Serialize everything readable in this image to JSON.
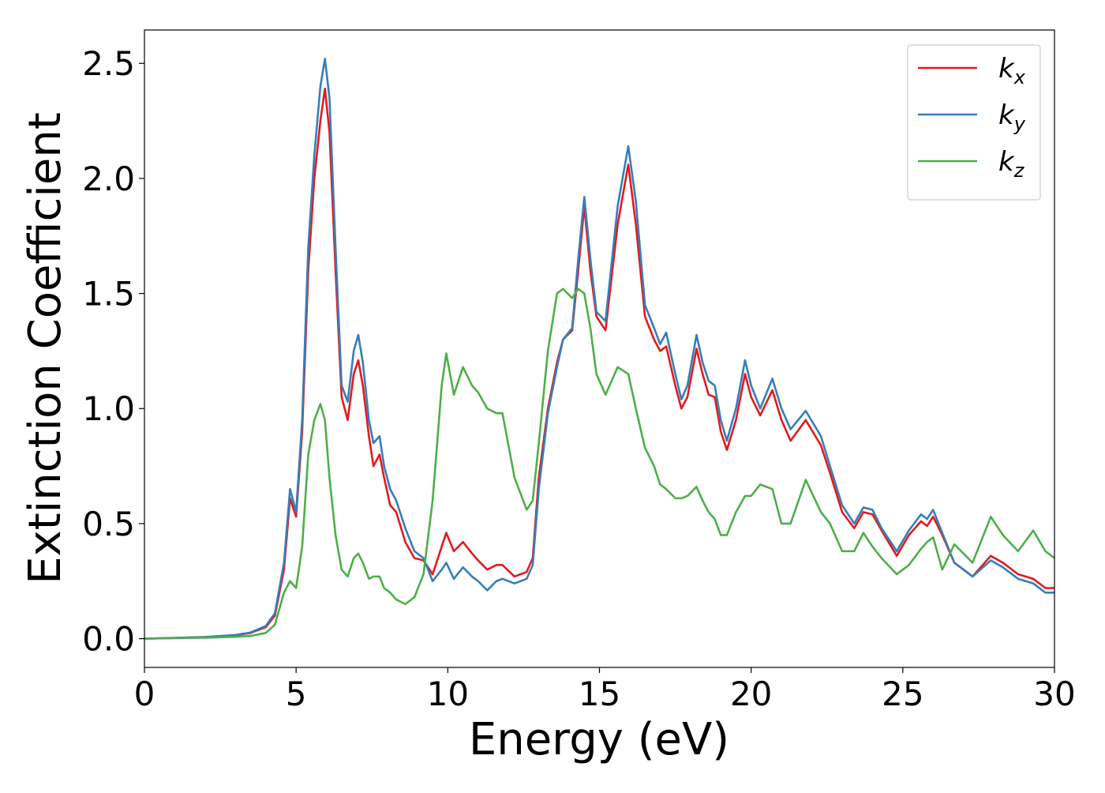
{
  "chart_data": {
    "type": "line",
    "x_label": "Energy (eV)",
    "y_label": "Extinction Coefficient",
    "xlim": [
      0,
      30
    ],
    "ylim": [
      -0.125,
      2.645
    ],
    "xticks": [
      0,
      5,
      10,
      15,
      20,
      25,
      30
    ],
    "yticks": [
      {
        "value": 0,
        "label": "0.0"
      },
      0.5,
      {
        "value": 1,
        "label": "1.0"
      },
      1.5,
      {
        "value": 2,
        "label": "2.0"
      },
      2.5
    ],
    "grid": false,
    "legend": "upper right",
    "x": [
      0,
      1,
      2,
      3,
      3.5,
      4,
      4.3,
      4.6,
      4.8,
      5.0,
      5.2,
      5.4,
      5.6,
      5.8,
      5.95,
      6.1,
      6.3,
      6.5,
      6.7,
      6.9,
      7.05,
      7.2,
      7.4,
      7.55,
      7.75,
      7.9,
      8.1,
      8.3,
      8.6,
      8.9,
      9.2,
      9.5,
      9.8,
      9.95,
      10.2,
      10.5,
      10.8,
      11.0,
      11.3,
      11.6,
      11.8,
      12.2,
      12.6,
      12.8,
      13.0,
      13.3,
      13.6,
      13.8,
      14.1,
      14.3,
      14.5,
      14.7,
      14.9,
      15.2,
      15.6,
      15.95,
      16.2,
      16.5,
      16.8,
      17.0,
      17.2,
      17.5,
      17.7,
      17.9,
      18.2,
      18.4,
      18.6,
      18.8,
      19.0,
      19.2,
      19.5,
      19.8,
      20.0,
      20.3,
      20.7,
      21.0,
      21.3,
      21.8,
      22.3,
      22.6,
      23.0,
      23.4,
      23.7,
      24.0,
      24.3,
      24.8,
      25.2,
      25.6,
      25.8,
      26.0,
      26.3,
      26.7,
      27.3,
      27.9,
      28.3,
      28.8,
      29.3,
      29.7,
      30
    ],
    "series": [
      {
        "name": "kx",
        "color": "#e41a1c",
        "values": [
          0,
          0.003,
          0.007,
          0.015,
          0.025,
          0.05,
          0.1,
          0.3,
          0.61,
          0.53,
          0.9,
          1.6,
          2.0,
          2.25,
          2.39,
          2.2,
          1.6,
          1.05,
          0.95,
          1.15,
          1.21,
          1.1,
          0.88,
          0.75,
          0.8,
          0.7,
          0.58,
          0.55,
          0.42,
          0.35,
          0.34,
          0.28,
          0.4,
          0.46,
          0.38,
          0.42,
          0.37,
          0.34,
          0.3,
          0.32,
          0.32,
          0.27,
          0.29,
          0.35,
          0.7,
          1.0,
          1.2,
          1.3,
          1.34,
          1.6,
          1.88,
          1.6,
          1.4,
          1.34,
          1.8,
          2.06,
          1.8,
          1.4,
          1.3,
          1.25,
          1.27,
          1.1,
          1.0,
          1.05,
          1.26,
          1.15,
          1.06,
          1.05,
          0.9,
          0.82,
          0.95,
          1.15,
          1.05,
          0.97,
          1.08,
          0.95,
          0.86,
          0.95,
          0.84,
          0.72,
          0.55,
          0.48,
          0.55,
          0.54,
          0.47,
          0.36,
          0.45,
          0.51,
          0.49,
          0.53,
          0.45,
          0.33,
          0.27,
          0.36,
          0.33,
          0.28,
          0.26,
          0.22,
          0.22
        ]
      },
      {
        "name": "ky",
        "color": "#377eb8",
        "values": [
          0,
          0.003,
          0.007,
          0.016,
          0.027,
          0.055,
          0.11,
          0.33,
          0.65,
          0.55,
          0.95,
          1.7,
          2.1,
          2.4,
          2.52,
          2.35,
          1.7,
          1.1,
          1.03,
          1.25,
          1.32,
          1.2,
          0.95,
          0.85,
          0.88,
          0.75,
          0.65,
          0.6,
          0.48,
          0.38,
          0.35,
          0.25,
          0.3,
          0.33,
          0.26,
          0.31,
          0.27,
          0.25,
          0.21,
          0.25,
          0.26,
          0.24,
          0.26,
          0.32,
          0.65,
          0.98,
          1.18,
          1.3,
          1.35,
          1.65,
          1.92,
          1.65,
          1.42,
          1.38,
          1.88,
          2.14,
          1.9,
          1.45,
          1.35,
          1.28,
          1.33,
          1.15,
          1.04,
          1.1,
          1.32,
          1.2,
          1.12,
          1.1,
          0.95,
          0.86,
          1.0,
          1.21,
          1.1,
          1.0,
          1.13,
          1.0,
          0.91,
          0.99,
          0.88,
          0.75,
          0.58,
          0.5,
          0.57,
          0.56,
          0.48,
          0.38,
          0.47,
          0.54,
          0.52,
          0.56,
          0.46,
          0.33,
          0.27,
          0.34,
          0.31,
          0.26,
          0.24,
          0.2,
          0.2
        ]
      },
      {
        "name": "kz",
        "color": "#4daf4a",
        "values": [
          0,
          0.002,
          0.004,
          0.008,
          0.012,
          0.025,
          0.06,
          0.2,
          0.25,
          0.22,
          0.4,
          0.8,
          0.95,
          1.02,
          0.95,
          0.7,
          0.45,
          0.3,
          0.27,
          0.35,
          0.37,
          0.33,
          0.26,
          0.27,
          0.27,
          0.22,
          0.2,
          0.17,
          0.15,
          0.18,
          0.28,
          0.6,
          1.1,
          1.24,
          1.06,
          1.18,
          1.1,
          1.07,
          1.0,
          0.98,
          0.98,
          0.7,
          0.56,
          0.6,
          0.85,
          1.25,
          1.5,
          1.52,
          1.48,
          1.52,
          1.5,
          1.35,
          1.15,
          1.06,
          1.18,
          1.15,
          1.0,
          0.83,
          0.75,
          0.67,
          0.65,
          0.61,
          0.61,
          0.62,
          0.66,
          0.6,
          0.55,
          0.52,
          0.45,
          0.45,
          0.55,
          0.62,
          0.62,
          0.67,
          0.65,
          0.5,
          0.5,
          0.69,
          0.55,
          0.5,
          0.38,
          0.38,
          0.46,
          0.4,
          0.35,
          0.28,
          0.32,
          0.39,
          0.42,
          0.44,
          0.3,
          0.41,
          0.33,
          0.53,
          0.45,
          0.38,
          0.47,
          0.38,
          0.35
        ]
      }
    ]
  }
}
